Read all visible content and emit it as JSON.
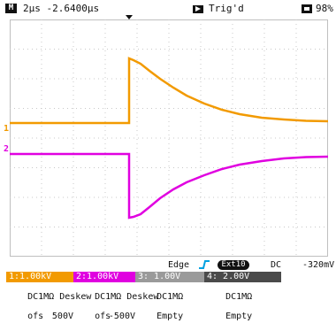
{
  "status": {
    "mode_icon": "M",
    "timebase": "2µs -2.6400µs",
    "trigger_state": "Trig'd",
    "battery": "98%"
  },
  "channels": [
    {
      "label": "1:1.00kV",
      "coupling": "DC1MΩ",
      "deskew": "Deskew",
      "ofs_label": "ofs",
      "ofs_value": "500V",
      "color": "#f29a00"
    },
    {
      "label": "2:1.00kV",
      "coupling": "DC1MΩ",
      "deskew": "Deskew",
      "ofs_label": "ofs",
      "ofs_value": "-500V",
      "color": "#e000e0"
    },
    {
      "label": "3: 1.00V",
      "coupling": "DC1MΩ",
      "ofs_value": "Empty",
      "color": "#9a9a9a"
    },
    {
      "label": "4: 2.00V",
      "coupling": "DC1MΩ",
      "ofs_value": "Empty",
      "color": "#4a4a4a"
    }
  ],
  "markers": {
    "ch1": "1",
    "ch2": "2"
  },
  "trigger": {
    "type": "Edge",
    "source": "Ext10",
    "coupling": "DC",
    "level": "-320mV"
  }
}
